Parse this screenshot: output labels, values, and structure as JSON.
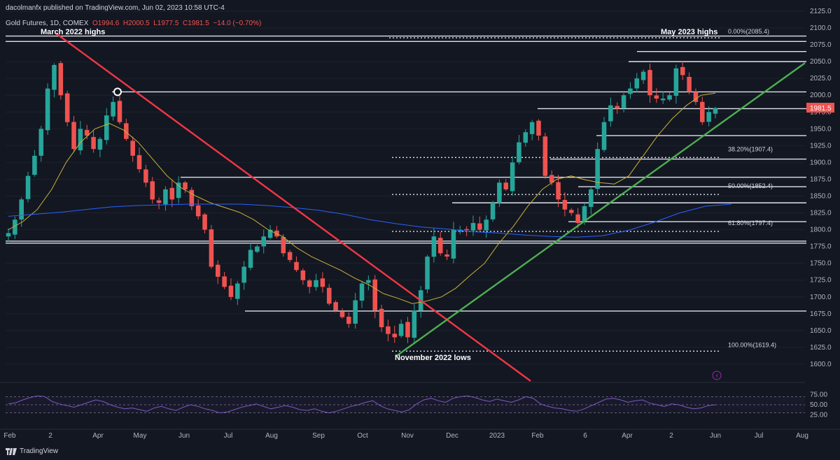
{
  "header": {
    "published": "dacolmanfx published on TradingView.com, Jun 02, 2023 10:58 UTC-4",
    "symbol": "Gold Futures, 1D, COMEX",
    "o": "O1994.6",
    "h": "H2000.5",
    "l": "L1977.5",
    "c": "C1981.5",
    "change": "−14.0 (−0.70%)"
  },
  "footer": {
    "brand": "TradingView"
  },
  "colors": {
    "bg": "#131722",
    "up": "#26a69a",
    "down": "#ef5350",
    "ma50": "#c9b036",
    "ma200": "#2962ff",
    "trend_down": "#f23645",
    "trend_up": "#4caf50",
    "rsi": "#7e57c2"
  },
  "chart_data": {
    "type": "line",
    "title": "",
    "price_axis": {
      "min": 1575,
      "max": 2125,
      "ticks": [
        2125,
        2100,
        2075,
        2050,
        2025,
        2000,
        1975,
        1950,
        1925,
        1900,
        1875,
        1850,
        1825,
        1800,
        1775,
        1750,
        1725,
        1700,
        1675,
        1650,
        1625,
        1600
      ]
    },
    "x_ticks": [
      "Feb",
      "2",
      "Apr",
      "May",
      "Jun",
      "Jul",
      "Aug",
      "Sep",
      "Oct",
      "Nov",
      "Dec",
      "2023",
      "Feb",
      "6",
      "Apr",
      "2",
      "Jun",
      "Jul",
      "Aug"
    ],
    "last_price": "1981.5",
    "series": [
      {
        "name": "",
        "kind": "price",
        "values": [
          1795,
          1815,
          1845,
          1880,
          1910,
          1950,
          2010,
          2045,
          2000,
          1960,
          1920,
          1950,
          1940,
          1920,
          1935,
          1970,
          1990,
          1960,
          1935,
          1910,
          1890,
          1870,
          1845,
          1840,
          1860,
          1845,
          1870,
          1860,
          1835,
          1820,
          1800,
          1745,
          1730,
          1715,
          1700,
          1720,
          1745,
          1770,
          1775,
          1790,
          1800,
          1790,
          1765,
          1755,
          1740,
          1725,
          1715,
          1725,
          1715,
          1690,
          1680,
          1670,
          1660,
          1695,
          1720,
          1725,
          1680,
          1655,
          1645,
          1640,
          1660,
          1640,
          1680,
          1710,
          1760,
          1790,
          1765,
          1760,
          1800,
          1800,
          1800,
          1810,
          1800,
          1815,
          1840,
          1870,
          1860,
          1900,
          1930,
          1945,
          1960,
          1940,
          1880,
          1870,
          1845,
          1830,
          1825,
          1810,
          1835,
          1860,
          1920,
          1960,
          1985,
          1980,
          2000,
          2010,
          2025,
          2035,
          2000,
          1995,
          1995,
          2000,
          2040,
          2030,
          2005,
          1990,
          1960,
          1975,
          1981
        ]
      },
      {
        "name": "",
        "kind": "sma50",
        "values": [
          1800,
          1812,
          1830,
          1860,
          1900,
          1930,
          1950,
          1958,
          1948,
          1930,
          1905,
          1880,
          1862,
          1850,
          1840,
          1833,
          1826,
          1815,
          1800,
          1790,
          1773,
          1760,
          1750,
          1740,
          1728,
          1718,
          1705,
          1698,
          1690,
          1694,
          1700,
          1713,
          1732,
          1750,
          1780,
          1805,
          1835,
          1860,
          1875,
          1880,
          1874,
          1870,
          1868,
          1880,
          1910,
          1940,
          1965,
          1985,
          2000,
          2003
        ]
      },
      {
        "name": "",
        "kind": "sma200",
        "values": [
          1820,
          1823,
          1826,
          1830,
          1834,
          1836,
          1837,
          1838,
          1838,
          1838,
          1836,
          1833,
          1829,
          1823,
          1815,
          1809,
          1804,
          1801,
          1797,
          1795,
          1792,
          1790,
          1789,
          1791,
          1799,
          1811,
          1825,
          1835,
          1838
        ]
      }
    ],
    "horizontal_levels": [
      2088,
      2080,
      2065,
      2050,
      2005,
      1980,
      1940,
      1905,
      1878,
      1864,
      1840,
      1812,
      1783,
      1780,
      1679
    ],
    "fibonacci": [
      {
        "label": "0.00%(2085.4)",
        "value": 2085.4
      },
      {
        "label": "38.20%(1907.4)",
        "value": 1907.4
      },
      {
        "label": "50.00%(1852.4)",
        "value": 1852.4
      },
      {
        "label": "61.80%(1797.4)",
        "value": 1797.4
      },
      {
        "label": "100.00%(1619.4)",
        "value": 1619.4
      }
    ],
    "annotations": [
      "March 2022 highs",
      "May 2023 highs",
      "November 2022 lows"
    ],
    "rsi": {
      "ticks": [
        75.0,
        50.0,
        25.0
      ],
      "values": [
        52,
        55,
        62,
        68,
        72,
        70,
        58,
        52,
        48,
        44,
        50,
        56,
        62,
        58,
        50,
        44,
        40,
        42,
        38,
        34,
        42,
        46,
        40,
        36,
        44,
        50,
        46,
        40,
        36,
        30,
        32,
        38,
        44,
        48,
        52,
        46,
        40,
        44,
        48,
        44,
        38,
        36,
        40,
        34,
        30,
        34,
        40,
        46,
        50,
        56,
        60,
        48,
        40,
        36,
        32,
        38,
        52,
        62,
        66,
        60,
        56,
        66,
        70,
        72,
        68,
        62,
        58,
        64,
        60,
        56,
        62,
        70,
        66,
        52,
        46,
        42,
        40,
        36,
        34,
        40,
        48,
        56,
        64,
        66,
        62,
        56,
        60,
        62,
        54,
        50,
        46,
        52,
        50,
        44,
        40,
        42,
        48,
        50
      ]
    }
  }
}
